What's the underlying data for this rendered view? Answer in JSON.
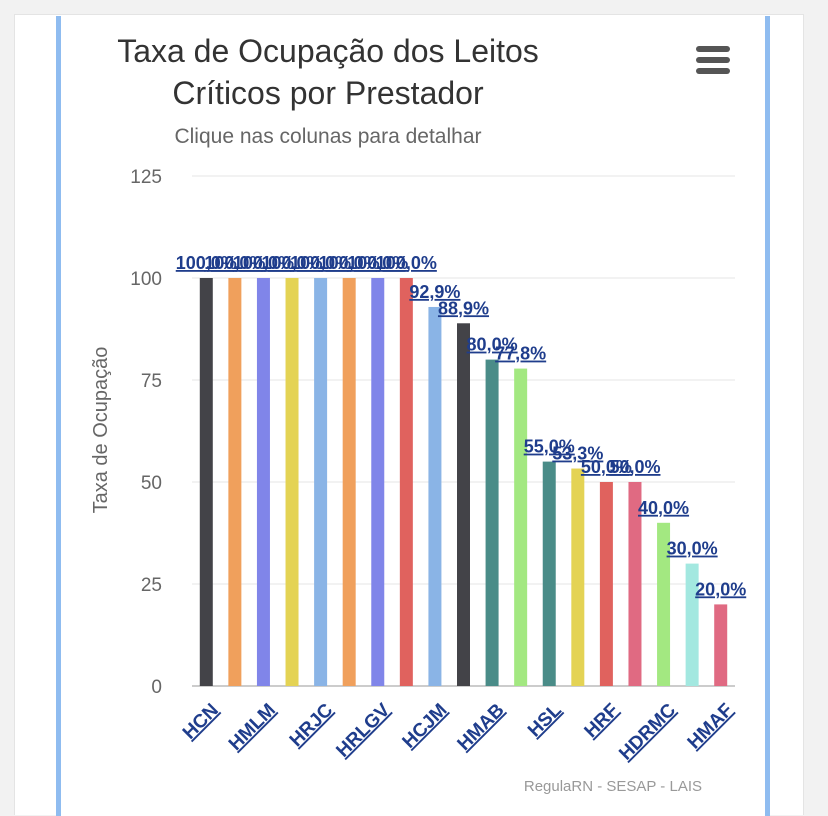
{
  "chart_data": {
    "type": "bar",
    "title": "Taxa de Ocupação dos Leitos Críticos por Prestador",
    "subtitle": "Clique nas colunas para detalhar",
    "ylabel": "Taxa de Ocupação",
    "ylim": [
      0,
      125
    ],
    "yticks": [
      "0",
      "25",
      "50",
      "75",
      "100",
      "125"
    ],
    "grid": true,
    "x_tick_labels": [
      "HCN",
      "HMLM",
      "HRJC",
      "HRLGV",
      "HCJM",
      "HMAB",
      "HSL",
      "HRF",
      "HDRMC",
      "HMAF"
    ],
    "bars": [
      {
        "value": 100.0,
        "label": "100,0%",
        "color": "#434348"
      },
      {
        "value": 100.0,
        "label": "100,0%",
        "color": "#f0a05c"
      },
      {
        "value": 100.0,
        "label": "100,0%",
        "color": "#8085e9"
      },
      {
        "value": 100.0,
        "label": "100,0%",
        "color": "#e4d354"
      },
      {
        "value": 100.0,
        "label": "100,0%",
        "color": "#8ab4e6"
      },
      {
        "value": 100.0,
        "label": "100,0%",
        "color": "#f0a05c"
      },
      {
        "value": 100.0,
        "label": "100,0%",
        "color": "#8085e9"
      },
      {
        "value": 100.0,
        "label": "100,0%",
        "color": "#e0625e"
      },
      {
        "value": 92.9,
        "label": "92,9%",
        "color": "#8ab4e6"
      },
      {
        "value": 88.9,
        "label": "88,9%",
        "color": "#434348"
      },
      {
        "value": 80.0,
        "label": "80,0%",
        "color": "#4a8c88"
      },
      {
        "value": 77.8,
        "label": "77,8%",
        "color": "#a3e881"
      },
      {
        "value": 55.0,
        "label": "55,0%",
        "color": "#4a8c88"
      },
      {
        "value": 53.3,
        "label": "53,3%",
        "color": "#e4d354"
      },
      {
        "value": 50.0,
        "label": "50,0%",
        "color": "#e0625e"
      },
      {
        "value": 50.0,
        "label": "50,0%",
        "color": "#e06a82"
      },
      {
        "value": 40.0,
        "label": "40,0%",
        "color": "#a3e881"
      },
      {
        "value": 30.0,
        "label": "30,0%",
        "color": "#a3e8e0"
      },
      {
        "value": 20.0,
        "label": "20,0%",
        "color": "#e06a82"
      }
    ]
  },
  "credits": "RegulaRN - SESAP - LAIS",
  "menu_icon": "hamburger-menu-icon"
}
